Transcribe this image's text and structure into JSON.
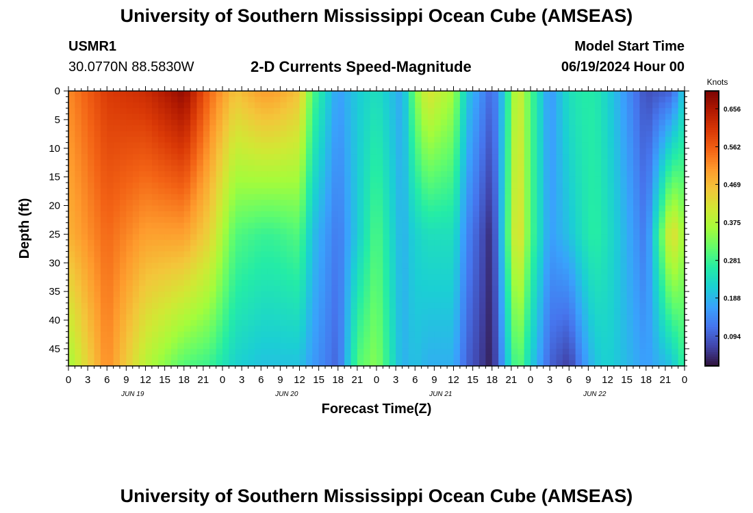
{
  "page": {
    "title": "University of Southern Mississippi Ocean Cube (AMSEAS)",
    "footer_title": "University of Southern Mississippi Ocean Cube (AMSEAS)",
    "station_id": "USMR1",
    "station_coords": "30.0770N  88.5830W",
    "center_title": "2-D Currents Speed-Magnitude",
    "start_label": "Model Start Time",
    "start_value": "06/19/2024 Hour 00"
  },
  "chart_data": {
    "type": "heatmap",
    "title": "2-D Currents Speed-Magnitude",
    "xlabel": "Forecast Time(Z)",
    "ylabel": "Depth (ft)",
    "x_range_hours": [
      0,
      96
    ],
    "x_tick_step_hours": 3,
    "x_tick_labels": [
      "0",
      "3",
      "6",
      "9",
      "12",
      "15",
      "18",
      "21",
      "0",
      "3",
      "6",
      "9",
      "12",
      "15",
      "18",
      "21",
      "0",
      "3",
      "6",
      "9",
      "12",
      "15",
      "18",
      "21",
      "0",
      "3",
      "6",
      "9",
      "12",
      "15",
      "18",
      "21",
      "0"
    ],
    "day_labels": [
      "JUN 19",
      "JUN 20",
      "JUN 21",
      "JUN 22"
    ],
    "ylim": [
      0,
      48
    ],
    "y_ticks": [
      0,
      5,
      10,
      15,
      20,
      25,
      30,
      35,
      40,
      45
    ],
    "y_tick_labels": [
      "0",
      "5",
      "10",
      "15",
      "20",
      "25",
      "30",
      "35",
      "40",
      "45"
    ],
    "colorbar": {
      "title": "Knots",
      "range": [
        0.02,
        0.7
      ],
      "ticks": [
        0.094,
        0.188,
        0.281,
        0.375,
        0.469,
        0.562,
        0.656
      ],
      "tick_labels": [
        "0.094",
        "0.188",
        "0.281",
        "0.375",
        "0.469",
        "0.562",
        "0.656"
      ],
      "colormap": [
        "#30123b",
        "#4145ab",
        "#4675ed",
        "#39a2fc",
        "#1bcfd4",
        "#24eca6",
        "#61fc6c",
        "#a4fc3b",
        "#d1e834",
        "#f3c63a",
        "#fe9b2d",
        "#f36315",
        "#d93806",
        "#b11901",
        "#7a0403"
      ]
    },
    "series": [
      {
        "name": "surface (0 ft)",
        "depth_ft": 0,
        "hours": [
          0,
          6,
          12,
          18,
          22,
          26,
          30,
          32,
          36,
          38,
          42,
          45,
          48,
          52,
          54,
          56,
          60,
          62,
          66,
          68,
          70,
          72,
          75,
          78,
          80,
          82,
          84,
          90,
          94,
          96
        ],
        "values": [
          0.52,
          0.6,
          0.62,
          0.68,
          0.55,
          0.46,
          0.5,
          0.5,
          0.46,
          0.3,
          0.16,
          0.21,
          0.24,
          0.17,
          0.33,
          0.42,
          0.36,
          0.21,
          0.1,
          0.22,
          0.42,
          0.3,
          0.15,
          0.24,
          0.26,
          0.26,
          0.22,
          0.08,
          0.1,
          0.22
        ]
      },
      {
        "name": "mid-depth (25 ft)",
        "depth_ft": 25,
        "hours": [
          0,
          6,
          12,
          18,
          22,
          26,
          30,
          32,
          36,
          38,
          42,
          45,
          48,
          52,
          54,
          56,
          60,
          62,
          66,
          68,
          70,
          72,
          75,
          78,
          80,
          82,
          84,
          90,
          94,
          96
        ],
        "values": [
          0.48,
          0.55,
          0.5,
          0.5,
          0.44,
          0.3,
          0.28,
          0.28,
          0.3,
          0.2,
          0.12,
          0.21,
          0.3,
          0.18,
          0.22,
          0.24,
          0.24,
          0.14,
          0.04,
          0.25,
          0.45,
          0.3,
          0.16,
          0.2,
          0.24,
          0.27,
          0.24,
          0.12,
          0.44,
          0.35
        ]
      },
      {
        "name": "bottom (48 ft)",
        "depth_ft": 48,
        "hours": [
          0,
          6,
          12,
          18,
          22,
          26,
          30,
          32,
          36,
          38,
          42,
          45,
          48,
          52,
          54,
          56,
          60,
          62,
          66,
          68,
          70,
          72,
          75,
          78,
          80,
          82,
          84,
          90,
          94,
          96
        ],
        "values": [
          0.36,
          0.52,
          0.38,
          0.3,
          0.28,
          0.22,
          0.2,
          0.2,
          0.2,
          0.16,
          0.1,
          0.3,
          0.34,
          0.18,
          0.2,
          0.18,
          0.18,
          0.1,
          0.03,
          0.18,
          0.32,
          0.22,
          0.1,
          0.06,
          0.14,
          0.2,
          0.22,
          0.16,
          0.2,
          0.28
        ]
      }
    ]
  }
}
